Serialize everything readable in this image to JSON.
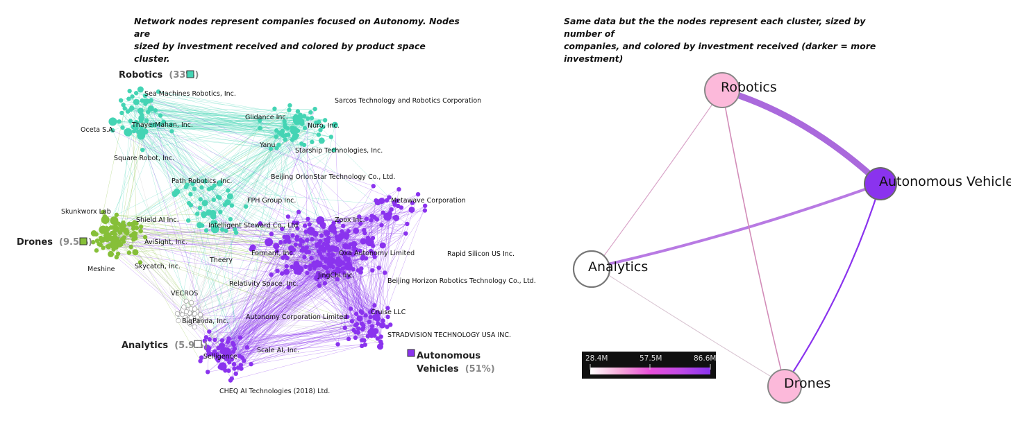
{
  "captions": {
    "left_line1": "Network nodes represent companies focused on Autonomy.  Nodes are",
    "left_line2": "sized by investment received  and colored by product space cluster.",
    "right_line1": "Same data but the the nodes represent each cluster, sized by number of",
    "right_line2": "companies, and colored by investment received (darker = more investment)"
  },
  "colors": {
    "robotics": "#44d4b4",
    "drones": "#86bf38",
    "autonomous_vehicles": "#8a33ee",
    "analytics": "#ffffff"
  },
  "clusters": [
    {
      "id": "robotics",
      "name": "Robotics",
      "pct": "(33%)"
    },
    {
      "id": "drones",
      "name": "Drones",
      "pct": "(9.5%)"
    },
    {
      "id": "analytics",
      "name": "Analytics",
      "pct": "(5.9%)"
    },
    {
      "id": "av",
      "name_line1": "Autonomous",
      "name_line2": "Vehicles",
      "pct": "(51%)"
    }
  ],
  "companies": [
    "Sea Machines Robotics, Inc.",
    "Sarcos Technology and Robotics Corporation",
    "Glidance Inc.",
    "Nuro, Inc.",
    "Oceta S.A.",
    "ThayerMahan, Inc.",
    "Yanu",
    "Starship Technologies, Inc.",
    "Square Robot, Inc.",
    "Path Robotics, Inc.",
    "Beijing OrionStar Technology Co., Ltd.",
    "Skunkworx Lab",
    "FPH Group Inc.",
    "Metawave Corporation",
    "Shield AI Inc.",
    "Intelligent Steward Co., Ltd",
    "Zoox Inc.",
    "AviSight, Inc.",
    "Formant, Inc.",
    "Oxa Autonomy Limited",
    "Rapid Silicon US Inc.",
    "Theery",
    "Meshine",
    "Skycatch, Inc.",
    "JingChi Inc.",
    "Relativity Space, Inc.",
    "Beijing Horizon Robotics Technology Co., Ltd.",
    "VECROS",
    "Cruise LLC",
    "BigPanda, Inc.",
    "Autonomy Corporation Limited",
    "STRADVISION TECHNOLOGY USA INC.",
    "Scale AI, Inc.",
    "Selligence",
    "CHEQ AI Technologies (2018) Ltd."
  ],
  "cluster_graph": {
    "nodes": [
      {
        "id": "robotics",
        "label": "Robotics"
      },
      {
        "id": "av",
        "label": "Autonomous Vehicles"
      },
      {
        "id": "analytics",
        "label": "Analytics"
      },
      {
        "id": "drones",
        "label": "Drones"
      }
    ],
    "edges": [
      {
        "from": "robotics",
        "to": "av",
        "strength": "strong"
      },
      {
        "from": "analytics",
        "to": "av",
        "strength": "medium"
      },
      {
        "from": "drones",
        "to": "av",
        "strength": "medium"
      },
      {
        "from": "robotics",
        "to": "analytics",
        "strength": "weak"
      },
      {
        "from": "robotics",
        "to": "drones",
        "strength": "weak"
      },
      {
        "from": "analytics",
        "to": "drones",
        "strength": "weak"
      }
    ]
  },
  "colorbar": {
    "ticks": [
      "28.4M",
      "57.5M",
      "86.6M"
    ],
    "gradient": [
      "#ffffff",
      "#f5a9d9",
      "#e84fd9",
      "#c04ae6",
      "#8a33ee"
    ]
  }
}
